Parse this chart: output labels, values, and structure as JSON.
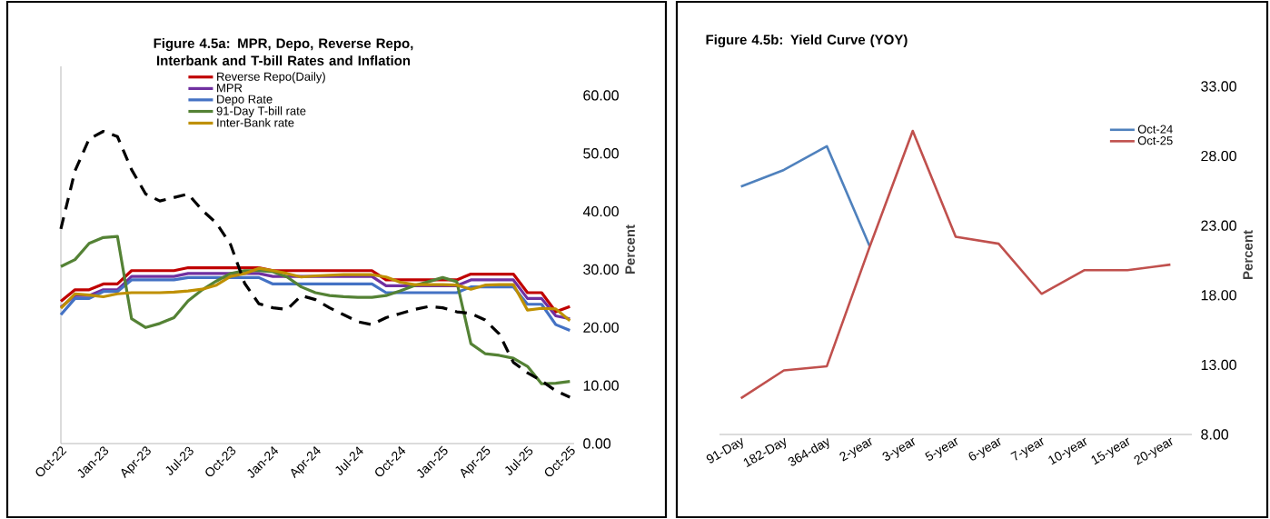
{
  "chart_data": [
    {
      "type": "line",
      "title": "Figure 4.5a: MPR, Depo, Reverse Repo, Interbank and T-bill Rates and Inflation",
      "ylabel": "Percent",
      "categories": [
        "Oct-22",
        null,
        null,
        "Jan-23",
        null,
        null,
        "Apr-23",
        null,
        null,
        "Jul-23",
        null,
        null,
        "Oct-23",
        null,
        null,
        "Jan-24",
        null,
        null,
        "Apr-24",
        null,
        null,
        "Jul-24",
        null,
        null,
        "Oct-24",
        null,
        null,
        "Jan-25",
        null,
        null,
        "Apr-25",
        null,
        null,
        "Jul-25",
        null,
        null,
        "Oct-25"
      ],
      "series": [
        {
          "name": "Reverse Repo(Daily)",
          "color": "#c00000",
          "values": [
            24.5,
            26.5,
            26.5,
            27.5,
            27.5,
            29.8,
            29.8,
            29.8,
            29.8,
            30.3,
            30.3,
            30.3,
            30.3,
            30.3,
            30.3,
            29.8,
            29.8,
            29.8,
            29.8,
            29.8,
            29.8,
            29.8,
            29.8,
            28.2,
            28.2,
            28.2,
            28.2,
            28.2,
            28.2,
            29.2,
            29.2,
            29.2,
            29.2,
            26.0,
            26.0,
            22.7,
            23.6
          ]
        },
        {
          "name": "MPR",
          "color": "#7030a0",
          "values": [
            23.5,
            25.5,
            25.5,
            26.5,
            26.5,
            28.8,
            28.8,
            28.8,
            28.8,
            29.3,
            29.3,
            29.3,
            29.3,
            29.3,
            29.3,
            28.8,
            28.8,
            28.8,
            28.8,
            28.8,
            28.8,
            28.8,
            28.8,
            27.2,
            27.2,
            27.2,
            27.2,
            27.2,
            27.2,
            28.2,
            28.2,
            28.2,
            28.2,
            25.0,
            25.0,
            22.0,
            21.5
          ]
        },
        {
          "name": "Depo Rate",
          "color": "#4472c4",
          "values": [
            22.2,
            25.0,
            25.0,
            26.2,
            26.2,
            28.2,
            28.2,
            28.2,
            28.2,
            28.6,
            28.6,
            28.6,
            28.6,
            28.6,
            28.6,
            27.5,
            27.5,
            27.5,
            27.5,
            27.5,
            27.5,
            27.5,
            27.5,
            26.0,
            26.0,
            26.0,
            26.0,
            26.0,
            26.0,
            27.0,
            27.0,
            27.0,
            27.0,
            24.0,
            24.0,
            20.5,
            19.5
          ]
        },
        {
          "name": "91-Day T-bill rate",
          "color": "#548235",
          "values": [
            30.5,
            31.7,
            34.5,
            35.5,
            35.7,
            21.5,
            20.0,
            20.7,
            21.7,
            24.6,
            26.5,
            28.0,
            29.3,
            29.8,
            29.8,
            29.6,
            28.7,
            27.0,
            26.0,
            25.5,
            25.3,
            25.2,
            25.2,
            25.5,
            26.3,
            27.2,
            27.9,
            28.6,
            27.9,
            17.2,
            15.5,
            15.2,
            14.7,
            13.3,
            10.3,
            10.4,
            10.7
          ]
        },
        {
          "name": "Inter-Bank rate",
          "color": "#bf9000",
          "values": [
            23.3,
            25.8,
            25.6,
            25.3,
            25.8,
            26.0,
            26.0,
            26.0,
            26.1,
            26.3,
            26.6,
            27.3,
            28.8,
            29.3,
            30.2,
            29.8,
            29.3,
            28.7,
            28.9,
            29.0,
            29.1,
            29.1,
            29.1,
            28.7,
            27.8,
            27.4,
            27.4,
            27.4,
            27.3,
            26.6,
            27.3,
            27.4,
            27.4,
            23.0,
            23.3,
            23.2,
            21.2
          ]
        },
        {
          "color": "#000000",
          "line_style": "dashed",
          "values": [
            37.0,
            47.0,
            52.5,
            53.8,
            52.9,
            47.2,
            43.0,
            41.8,
            42.4,
            43.0,
            40.2,
            38.0,
            34.3,
            27.6,
            24.1,
            23.4,
            23.1,
            25.5,
            24.8,
            23.4,
            22.2,
            21.0,
            20.5,
            21.7,
            22.4,
            23.1,
            23.6,
            23.4,
            22.7,
            22.4,
            21.3,
            18.9,
            14.0,
            12.2,
            10.8,
            9.1,
            8.0
          ]
        }
      ],
      "ylim": [
        0,
        65
      ],
      "yticks": [
        {
          "value": 0,
          "label": "0.00"
        },
        {
          "value": 10,
          "label": "10.00"
        },
        {
          "value": 20,
          "label": "20.00"
        },
        {
          "value": 30,
          "label": "30.00"
        },
        {
          "value": 40,
          "label": "40.00"
        },
        {
          "value": 50,
          "label": "50.00"
        },
        {
          "value": 60,
          "label": "60.00"
        }
      ],
      "legend": "top"
    },
    {
      "type": "line",
      "title": "Figure 4.5b: Yield Curve (YOY)",
      "ylabel": "Percent",
      "categories": [
        "91-Day",
        "182-Day",
        "364-day",
        "2-year",
        "3-year",
        "5-year",
        "6-year",
        "7-year",
        "10-year",
        "15-year",
        "20-year"
      ],
      "series": [
        {
          "name": "Oct-24",
          "color": "#4f81bd",
          "values": [
            25.8,
            27.0,
            28.7,
            21.5,
            null,
            null,
            null,
            null,
            null,
            null,
            null
          ]
        },
        {
          "name": "Oct-25",
          "color": "#c0504d",
          "values": [
            10.6,
            12.6,
            12.9,
            21.5,
            29.8,
            22.2,
            21.7,
            18.1,
            19.8,
            19.8,
            20.2
          ]
        }
      ],
      "ylim": [
        8,
        33
      ],
      "yticks": [
        {
          "value": 8,
          "label": "8.00"
        },
        {
          "value": 13,
          "label": "13.00"
        },
        {
          "value": 18,
          "label": "18.00"
        },
        {
          "value": 23,
          "label": "23.00"
        },
        {
          "value": 28,
          "label": "28.00"
        },
        {
          "value": 33,
          "label": "33.00"
        }
      ],
      "legend": "top right"
    }
  ]
}
